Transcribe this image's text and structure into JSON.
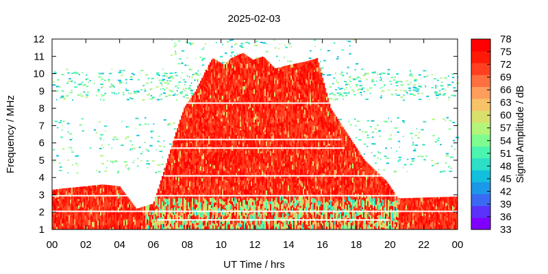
{
  "chart_data": {
    "type": "heatmap",
    "title": "2025-02-03",
    "xlabel": "UT Time / hrs",
    "ylabel": "Frequency / MHz",
    "colorbar_label": "Signal Amplitude / dB",
    "xlim": [
      0,
      24
    ],
    "ylim": [
      1,
      12
    ],
    "x_tick_labels": [
      "00",
      "02",
      "04",
      "06",
      "08",
      "10",
      "12",
      "14",
      "16",
      "18",
      "20",
      "22",
      "00"
    ],
    "y_ticks": [
      1,
      2,
      3,
      4,
      5,
      6,
      7,
      8,
      9,
      10,
      11,
      12
    ],
    "colorbar_ticks": [
      33,
      36,
      39,
      42,
      45,
      48,
      51,
      54,
      57,
      60,
      63,
      66,
      69,
      72,
      75,
      78
    ],
    "colorbar_range": [
      33,
      78
    ],
    "colorbar_colors": [
      "#8000ff",
      "#5a32fa",
      "#3a6af3",
      "#1c98e8",
      "#12bfdd",
      "#2ddfc7",
      "#4cf5af",
      "#7ffc8f",
      "#b4f47a",
      "#d8e06b",
      "#f7c268",
      "#ff9e5c",
      "#ff7040",
      "#ff4020",
      "#ff1a08",
      "#ff0000"
    ],
    "envelope_upper_mhz": [
      [
        0,
        3.3
      ],
      [
        3,
        3.6
      ],
      [
        4,
        3.5
      ],
      [
        5,
        2.2
      ],
      [
        6,
        2.5
      ],
      [
        6.6,
        4.3
      ],
      [
        7.2,
        6.2
      ],
      [
        7.8,
        8.0
      ],
      [
        8.5,
        9.0
      ],
      [
        9.0,
        10.0
      ],
      [
        9.5,
        10.9
      ],
      [
        10.2,
        10.5
      ],
      [
        10.6,
        10.9
      ],
      [
        11.3,
        11.2
      ],
      [
        11.9,
        10.8
      ],
      [
        12.5,
        11.0
      ],
      [
        13.2,
        10.3
      ],
      [
        14.0,
        10.5
      ],
      [
        15.0,
        10.7
      ],
      [
        15.7,
        10.9
      ],
      [
        16.5,
        8.0
      ],
      [
        17.5,
        6.5
      ],
      [
        18.5,
        5.0
      ],
      [
        19.8,
        3.8
      ],
      [
        20.5,
        2.8
      ],
      [
        24,
        2.9
      ]
    ]
  }
}
